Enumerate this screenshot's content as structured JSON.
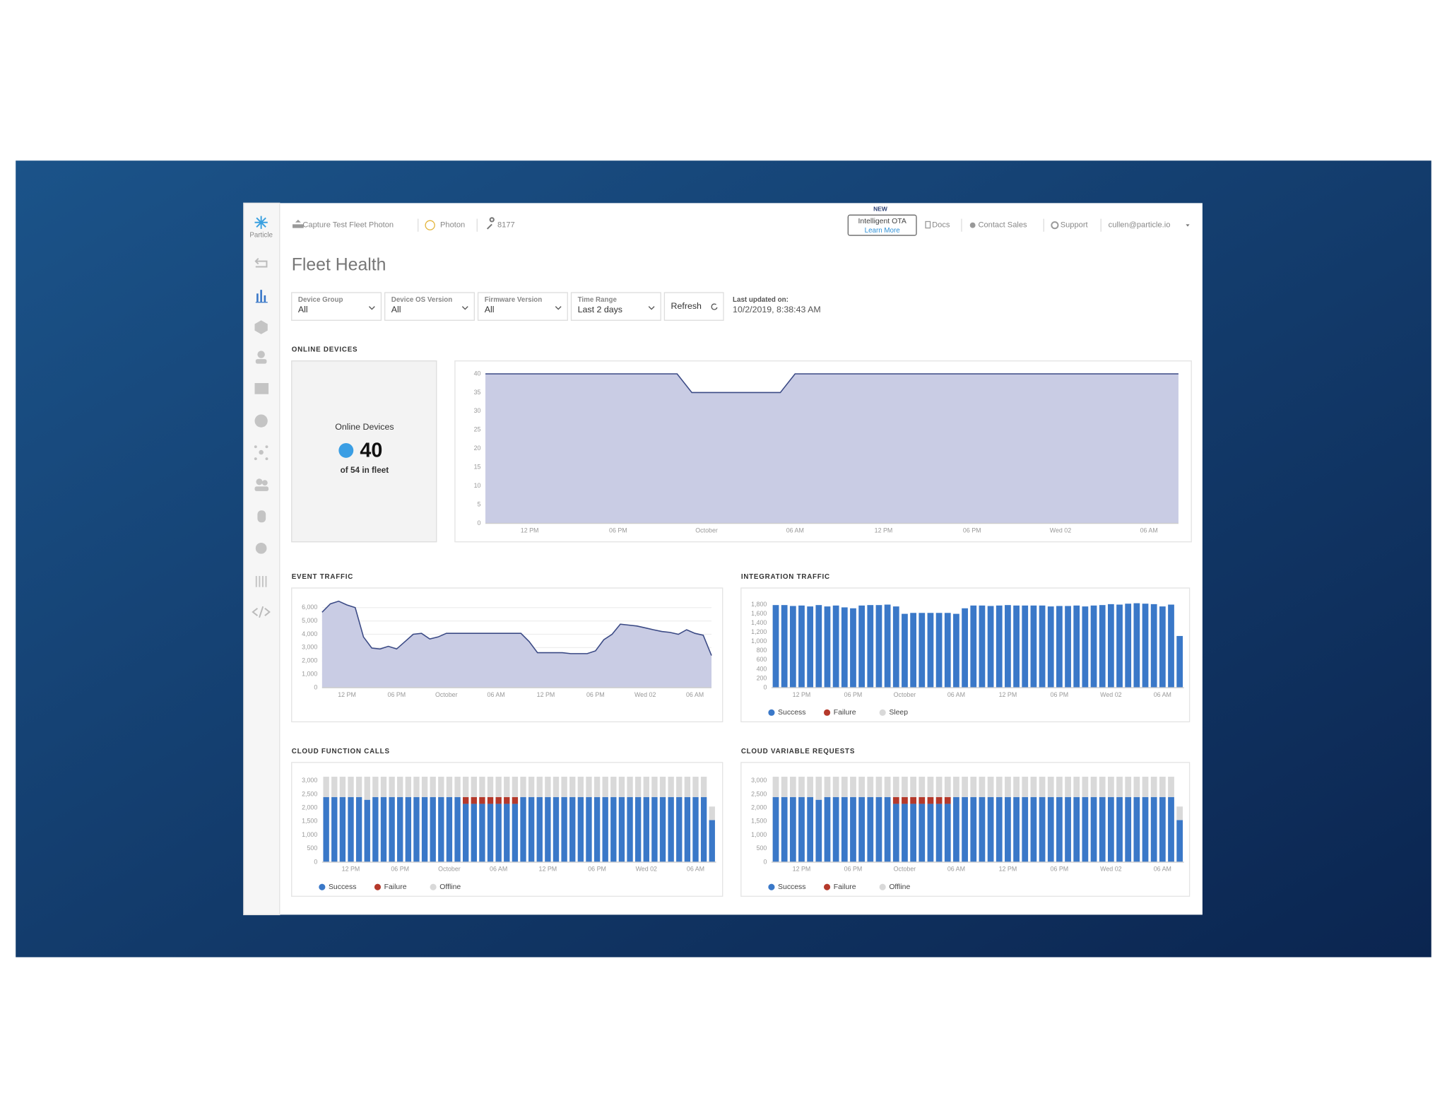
{
  "header": {
    "breadcrumbs": [
      "Capture Test Fleet Photon",
      "Photon",
      "8177"
    ],
    "ota_badge": "NEW",
    "ota_title": "Intelligent OTA",
    "ota_link": "Learn More",
    "links": [
      "Docs",
      "Contact Sales",
      "Support"
    ],
    "user": "cullen@particle.io"
  },
  "sidebar": {
    "logo": "Particle"
  },
  "page_title": "Fleet Health",
  "filters": [
    {
      "label": "Device Group",
      "value": "All"
    },
    {
      "label": "Device OS Version",
      "value": "All"
    },
    {
      "label": "Firmware Version",
      "value": "All"
    },
    {
      "label": "Time Range",
      "value": "Last 2 days"
    }
  ],
  "refresh": "Refresh",
  "last_updated": {
    "label": "Last updated on:",
    "value": "10/2/2019, 8:38:43 AM"
  },
  "online_summary": {
    "label": "Online Devices",
    "count": 40,
    "sub": "of 54 in fleet"
  },
  "chart_data": [
    {
      "type": "area",
      "title": "ONLINE DEVICES",
      "color": "#3b4a85",
      "fill_color": "#c9cce4",
      "grid": false,
      "categories": [
        null,
        null,
        null,
        "12 PM",
        null,
        null,
        null,
        null,
        null,
        "06 PM",
        null,
        null,
        null,
        null,
        null,
        "October",
        null,
        null,
        null,
        null,
        null,
        "06 AM",
        null,
        null,
        null,
        null,
        null,
        "12 PM",
        null,
        null,
        null,
        null,
        null,
        "06 PM",
        null,
        null,
        null,
        null,
        null,
        "Wed 02",
        null,
        null,
        null,
        null,
        null,
        "06 AM",
        null,
        null
      ],
      "values": [
        40,
        40,
        40,
        40,
        40,
        40,
        40,
        40,
        40,
        40,
        40,
        40,
        40,
        40,
        35,
        35,
        35,
        35,
        35,
        35,
        35,
        40,
        40,
        40,
        40,
        40,
        40,
        40,
        40,
        40,
        40,
        40,
        40,
        40,
        40,
        40,
        40,
        40,
        40,
        40,
        40,
        40,
        40,
        40,
        40,
        40,
        40,
        40
      ],
      "ylim": [
        0,
        40
      ],
      "yticks": [
        0,
        5,
        10,
        15,
        20,
        25,
        30,
        35,
        40
      ]
    },
    {
      "type": "area",
      "title": "EVENT TRAFFIC",
      "color": "#3b4a85",
      "fill_color": "#c9cce4",
      "grid": true,
      "categories": [
        null,
        null,
        null,
        "12 PM",
        null,
        null,
        null,
        null,
        null,
        "06 PM",
        null,
        null,
        null,
        null,
        null,
        "October",
        null,
        null,
        null,
        null,
        null,
        "06 AM",
        null,
        null,
        null,
        null,
        null,
        "12 PM",
        null,
        null,
        null,
        null,
        null,
        "06 PM",
        null,
        null,
        null,
        null,
        null,
        "Wed 02",
        null,
        null,
        null,
        null,
        null,
        "06 AM",
        null,
        null
      ],
      "values": [
        5650,
        6280,
        6480,
        6200,
        6000,
        3800,
        2970,
        2900,
        3100,
        2900,
        3450,
        4000,
        4070,
        3650,
        3800,
        4070,
        4070,
        4070,
        4070,
        4070,
        4070,
        4070,
        4070,
        4070,
        4070,
        3450,
        2620,
        2620,
        2620,
        2620,
        2550,
        2550,
        2550,
        2760,
        3590,
        4000,
        4760,
        4690,
        4620,
        4480,
        4340,
        4210,
        4140,
        4000,
        4340,
        4070,
        3930,
        2410
      ],
      "ylim": [
        0,
        6500
      ],
      "yticks": [
        0,
        {
          "value": 1000,
          "label": "1,000"
        },
        {
          "value": 2000,
          "label": "2,000"
        },
        {
          "value": 3000,
          "label": "3,000"
        },
        {
          "value": 4000,
          "label": "4,000"
        },
        {
          "value": 5000,
          "label": "5,000"
        },
        {
          "value": 6000,
          "label": "6,000"
        }
      ]
    },
    {
      "type": "stacked_bar",
      "title": "INTEGRATION TRAFFIC",
      "grid": false,
      "categories": [
        null,
        null,
        null,
        "12 PM",
        null,
        null,
        null,
        null,
        null,
        "06 PM",
        null,
        null,
        null,
        null,
        null,
        "October",
        null,
        null,
        null,
        null,
        null,
        "06 AM",
        null,
        null,
        null,
        null,
        null,
        "12 PM",
        null,
        null,
        null,
        null,
        null,
        "06 PM",
        null,
        null,
        null,
        null,
        null,
        "Wed 02",
        null,
        null,
        null,
        null,
        null,
        "06 AM",
        null,
        null
      ],
      "series": [
        {
          "name": "Success",
          "color": "#3a78c8",
          "values": [
            1790,
            1790,
            1770,
            1780,
            1760,
            1790,
            1760,
            1780,
            1740,
            1720,
            1780,
            1790,
            1790,
            1800,
            1760,
            1600,
            1620,
            1620,
            1620,
            1620,
            1620,
            1600,
            1720,
            1780,
            1780,
            1770,
            1780,
            1790,
            1780,
            1780,
            1780,
            1780,
            1760,
            1770,
            1770,
            1780,
            1760,
            1780,
            1790,
            1810,
            1800,
            1820,
            1830,
            1820,
            1810,
            1760,
            1800,
            1120
          ]
        },
        {
          "name": "Failure",
          "color": "#b5392b",
          "values": [
            0,
            0,
            0,
            0,
            0,
            0,
            0,
            0,
            0,
            0,
            0,
            0,
            0,
            0,
            0,
            0,
            0,
            0,
            0,
            0,
            0,
            0,
            0,
            0,
            0,
            0,
            0,
            0,
            0,
            0,
            0,
            0,
            0,
            0,
            0,
            0,
            0,
            0,
            0,
            0,
            0,
            0,
            0,
            0,
            0,
            0,
            0,
            0
          ]
        },
        {
          "name": "Sleep",
          "color": "#d9d9d9",
          "values": [
            0,
            0,
            0,
            0,
            0,
            0,
            0,
            0,
            0,
            0,
            0,
            0,
            0,
            0,
            0,
            0,
            0,
            0,
            0,
            0,
            0,
            0,
            0,
            0,
            0,
            0,
            0,
            0,
            0,
            0,
            0,
            0,
            0,
            0,
            0,
            0,
            0,
            0,
            0,
            0,
            0,
            0,
            0,
            0,
            0,
            0,
            0,
            0
          ]
        }
      ],
      "ylim": [
        0,
        1900
      ],
      "yticks": [
        0,
        200,
        400,
        600,
        800,
        {
          "value": 1000,
          "label": "1,000"
        },
        {
          "value": 1200,
          "label": "1,200"
        },
        {
          "value": 1400,
          "label": "1,400"
        },
        {
          "value": 1600,
          "label": "1,600"
        },
        {
          "value": 1800,
          "label": "1,800"
        }
      ]
    },
    {
      "type": "stacked_bar",
      "title": "CLOUD FUNCTION CALLS",
      "grid": false,
      "categories": [
        null,
        null,
        null,
        "12 PM",
        null,
        null,
        null,
        null,
        null,
        "06 PM",
        null,
        null,
        null,
        null,
        null,
        "October",
        null,
        null,
        null,
        null,
        null,
        "06 AM",
        null,
        null,
        null,
        null,
        null,
        "12 PM",
        null,
        null,
        null,
        null,
        null,
        "06 PM",
        null,
        null,
        null,
        null,
        null,
        "Wed 02",
        null,
        null,
        null,
        null,
        null,
        "06 AM",
        null,
        null
      ],
      "series": [
        {
          "name": "Success",
          "color": "#3a78c8",
          "values": [
            2400,
            2400,
            2400,
            2400,
            2400,
            2300,
            2400,
            2400,
            2400,
            2400,
            2400,
            2400,
            2400,
            2400,
            2400,
            2400,
            2400,
            2150,
            2150,
            2150,
            2150,
            2150,
            2150,
            2150,
            2400,
            2400,
            2400,
            2400,
            2400,
            2400,
            2400,
            2400,
            2400,
            2400,
            2400,
            2400,
            2400,
            2400,
            2400,
            2400,
            2400,
            2400,
            2400,
            2400,
            2400,
            2400,
            2400,
            1550
          ]
        },
        {
          "name": "Failure",
          "color": "#b5392b",
          "values": [
            0,
            0,
            0,
            0,
            0,
            0,
            0,
            0,
            0,
            0,
            0,
            0,
            0,
            0,
            0,
            0,
            0,
            250,
            250,
            250,
            250,
            250,
            250,
            250,
            0,
            0,
            0,
            0,
            0,
            0,
            0,
            0,
            0,
            0,
            0,
            0,
            0,
            0,
            0,
            0,
            0,
            0,
            0,
            0,
            0,
            0,
            0,
            0
          ]
        },
        {
          "name": "Offline",
          "color": "#d9d9d9",
          "values": [
            750,
            750,
            750,
            750,
            750,
            850,
            750,
            750,
            750,
            750,
            750,
            750,
            750,
            750,
            750,
            750,
            750,
            750,
            750,
            750,
            750,
            750,
            750,
            750,
            750,
            750,
            750,
            750,
            750,
            750,
            750,
            750,
            750,
            750,
            750,
            750,
            750,
            750,
            750,
            750,
            750,
            750,
            750,
            750,
            750,
            750,
            750,
            500
          ]
        }
      ],
      "ylim": [
        0,
        3200
      ],
      "yticks": [
        0,
        500,
        {
          "value": 1000,
          "label": "1,000"
        },
        {
          "value": 1500,
          "label": "1,500"
        },
        {
          "value": 2000,
          "label": "2,000"
        },
        {
          "value": 2500,
          "label": "2,500"
        },
        {
          "value": 3000,
          "label": "3,000"
        }
      ]
    },
    {
      "type": "stacked_bar",
      "title": "CLOUD VARIABLE REQUESTS",
      "grid": false,
      "categories": [
        null,
        null,
        null,
        "12 PM",
        null,
        null,
        null,
        null,
        null,
        "06 PM",
        null,
        null,
        null,
        null,
        null,
        "October",
        null,
        null,
        null,
        null,
        null,
        "06 AM",
        null,
        null,
        null,
        null,
        null,
        "12 PM",
        null,
        null,
        null,
        null,
        null,
        "06 PM",
        null,
        null,
        null,
        null,
        null,
        "Wed 02",
        null,
        null,
        null,
        null,
        null,
        "06 AM",
        null,
        null
      ],
      "series": [
        {
          "name": "Success",
          "color": "#3a78c8",
          "values": [
            2400,
            2400,
            2400,
            2400,
            2400,
            2300,
            2400,
            2400,
            2400,
            2400,
            2400,
            2400,
            2400,
            2400,
            2150,
            2150,
            2150,
            2150,
            2150,
            2150,
            2150,
            2400,
            2400,
            2400,
            2400,
            2400,
            2400,
            2400,
            2400,
            2400,
            2400,
            2400,
            2400,
            2400,
            2400,
            2400,
            2400,
            2400,
            2400,
            2400,
            2400,
            2400,
            2400,
            2400,
            2400,
            2400,
            2400,
            1550
          ]
        },
        {
          "name": "Failure",
          "color": "#b5392b",
          "values": [
            0,
            0,
            0,
            0,
            0,
            0,
            0,
            0,
            0,
            0,
            0,
            0,
            0,
            0,
            250,
            250,
            250,
            250,
            250,
            250,
            250,
            0,
            0,
            0,
            0,
            0,
            0,
            0,
            0,
            0,
            0,
            0,
            0,
            0,
            0,
            0,
            0,
            0,
            0,
            0,
            0,
            0,
            0,
            0,
            0,
            0,
            0,
            0
          ]
        },
        {
          "name": "Offline",
          "color": "#d9d9d9",
          "values": [
            750,
            750,
            750,
            750,
            750,
            850,
            750,
            750,
            750,
            750,
            750,
            750,
            750,
            750,
            750,
            750,
            750,
            750,
            750,
            750,
            750,
            750,
            750,
            750,
            750,
            750,
            750,
            750,
            750,
            750,
            750,
            750,
            750,
            750,
            750,
            750,
            750,
            750,
            750,
            750,
            750,
            750,
            750,
            750,
            750,
            750,
            750,
            500
          ]
        }
      ],
      "ylim": [
        0,
        3200
      ],
      "yticks": [
        0,
        500,
        {
          "value": 1000,
          "label": "1,000"
        },
        {
          "value": 1500,
          "label": "1,500"
        },
        {
          "value": 2000,
          "label": "2,000"
        },
        {
          "value": 2500,
          "label": "2,500"
        },
        {
          "value": 3000,
          "label": "3,000"
        }
      ]
    }
  ]
}
